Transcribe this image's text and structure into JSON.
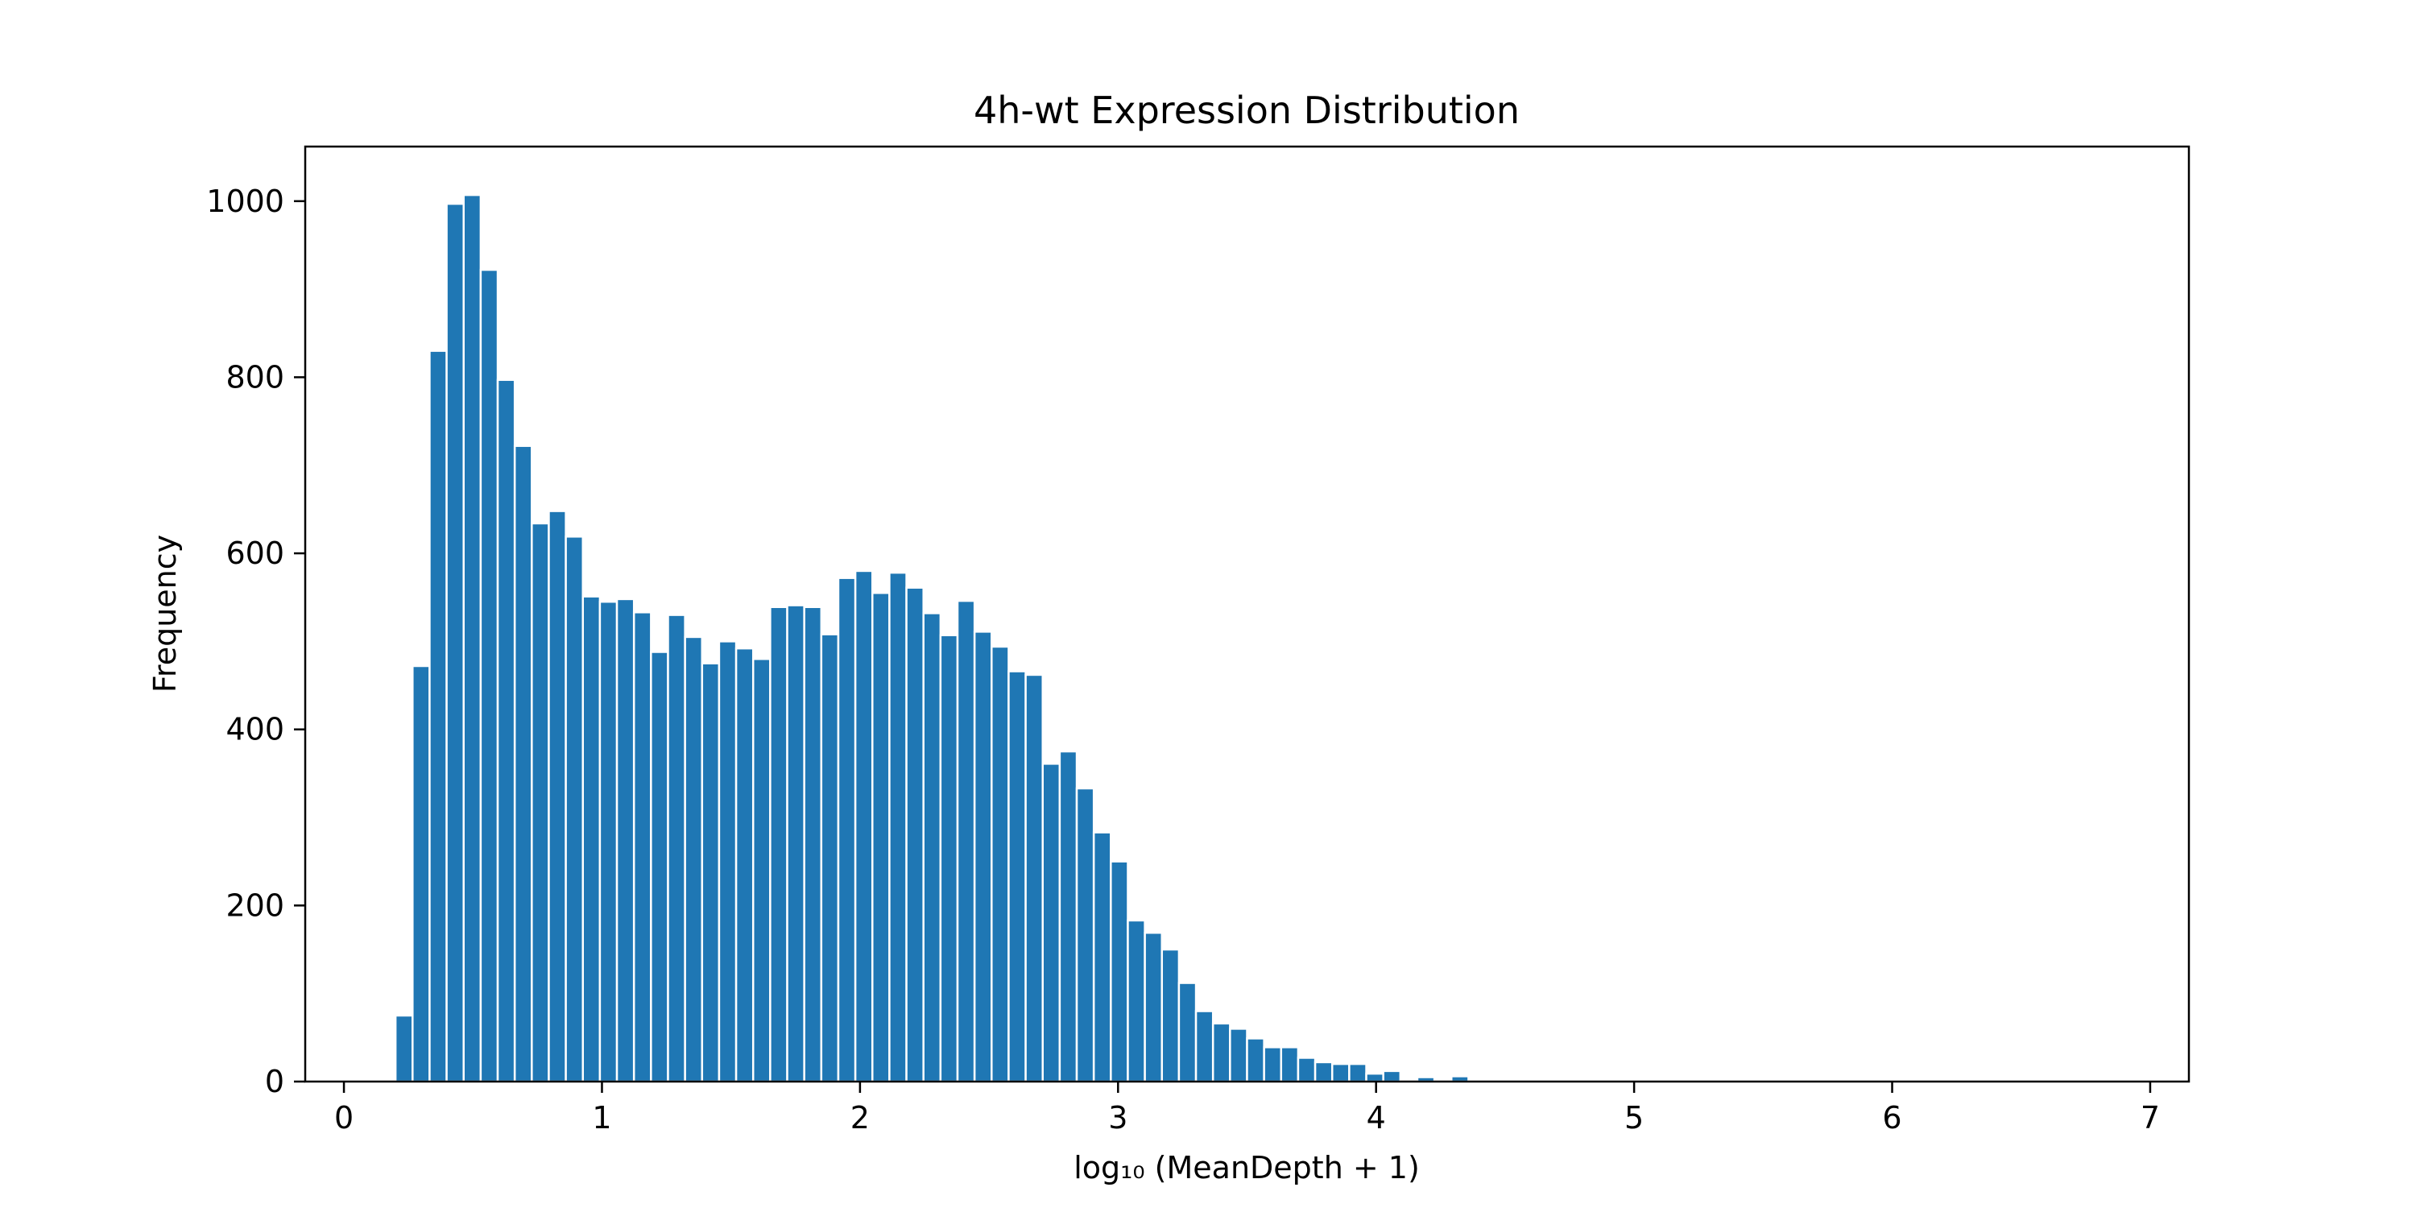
{
  "chart_data": {
    "type": "bar",
    "title": "4h-wt Expression Distribution",
    "xlabel": "log₁₀ (MeanDepth + 1)",
    "ylabel": "Frequency",
    "xlim": [
      -0.15,
      7.15
    ],
    "ylim": [
      0,
      1062
    ],
    "bin_width": 0.066,
    "bar_color": "#1f77b4",
    "grid": false,
    "xticks": [
      0,
      1,
      2,
      3,
      4,
      5,
      6,
      7
    ],
    "yticks": [
      0,
      200,
      400,
      600,
      800,
      1000
    ],
    "x": [
      0.2,
      0.266,
      0.332,
      0.398,
      0.464,
      0.53,
      0.596,
      0.662,
      0.728,
      0.794,
      0.86,
      0.926,
      0.992,
      1.058,
      1.124,
      1.19,
      1.256,
      1.322,
      1.388,
      1.454,
      1.52,
      1.586,
      1.652,
      1.718,
      1.784,
      1.85,
      1.916,
      1.982,
      2.048,
      2.114,
      2.18,
      2.246,
      2.312,
      2.378,
      2.444,
      2.51,
      2.576,
      2.642,
      2.708,
      2.774,
      2.84,
      2.906,
      2.972,
      3.038,
      3.104,
      3.17,
      3.236,
      3.302,
      3.368,
      3.434,
      3.5,
      3.566,
      3.632,
      3.698,
      3.764,
      3.83,
      3.896,
      3.962,
      4.028,
      4.094,
      4.16,
      4.226,
      4.292,
      4.358,
      4.424
    ],
    "values": [
      75,
      472,
      830,
      997,
      1007,
      922,
      797,
      722,
      634,
      648,
      619,
      551,
      545,
      548,
      533,
      488,
      530,
      505,
      475,
      500,
      492,
      480,
      539,
      541,
      539,
      508,
      572,
      580,
      555,
      578,
      561,
      532,
      507,
      546,
      511,
      494,
      466,
      462,
      361,
      375,
      333,
      283,
      250,
      183,
      169,
      150,
      112,
      80,
      66,
      60,
      49,
      39,
      39,
      27,
      22,
      20,
      20,
      9,
      12,
      0,
      5,
      0,
      6,
      0,
      2
    ]
  }
}
